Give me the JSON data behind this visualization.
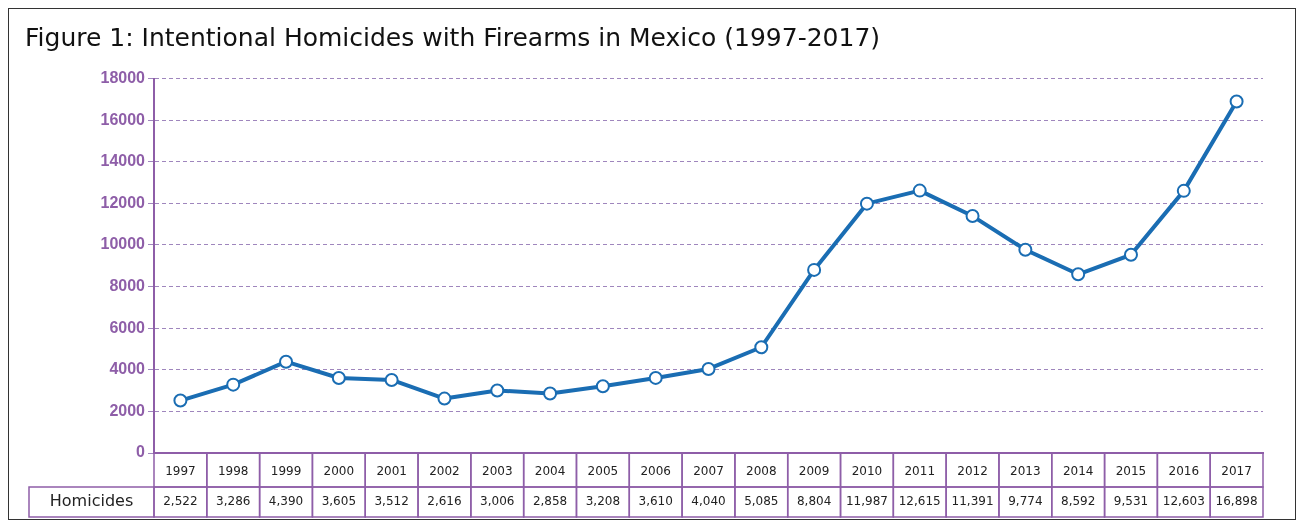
{
  "chart_data": {
    "type": "line",
    "title": "Figure 1: Intentional Homicides with Firearms in Mexico (1997-2017)",
    "categories": [
      "1997",
      "1998",
      "1999",
      "2000",
      "2001",
      "2002",
      "2003",
      "2004",
      "2005",
      "2006",
      "2007",
      "2008",
      "2009",
      "2010",
      "2011",
      "2012",
      "2013",
      "2014",
      "2015",
      "2016",
      "2017"
    ],
    "series": [
      {
        "name": "Homicides",
        "color": "#1a6db3",
        "values": [
          2522,
          3286,
          4390,
          3605,
          3512,
          2616,
          3006,
          2858,
          3208,
          3610,
          4040,
          5085,
          8804,
          11987,
          12615,
          11391,
          9774,
          8592,
          9531,
          12603,
          16898
        ],
        "value_labels": [
          "2,522",
          "3,286",
          "4,390",
          "3,605",
          "3,512",
          "2,616",
          "3,006",
          "2,858",
          "3,208",
          "3,610",
          "4,040",
          "5,085",
          "8,804",
          "11,987",
          "12,615",
          "11,391",
          "9,774",
          "8,592",
          "9,531",
          "12,603",
          "16,898"
        ]
      }
    ],
    "ylim": [
      0,
      18000
    ],
    "yticks": [
      0,
      2000,
      4000,
      6000,
      8000,
      10000,
      12000,
      14000,
      16000,
      18000
    ],
    "grid": "y",
    "legend": false,
    "marker": "circle",
    "line_style": "solid"
  }
}
